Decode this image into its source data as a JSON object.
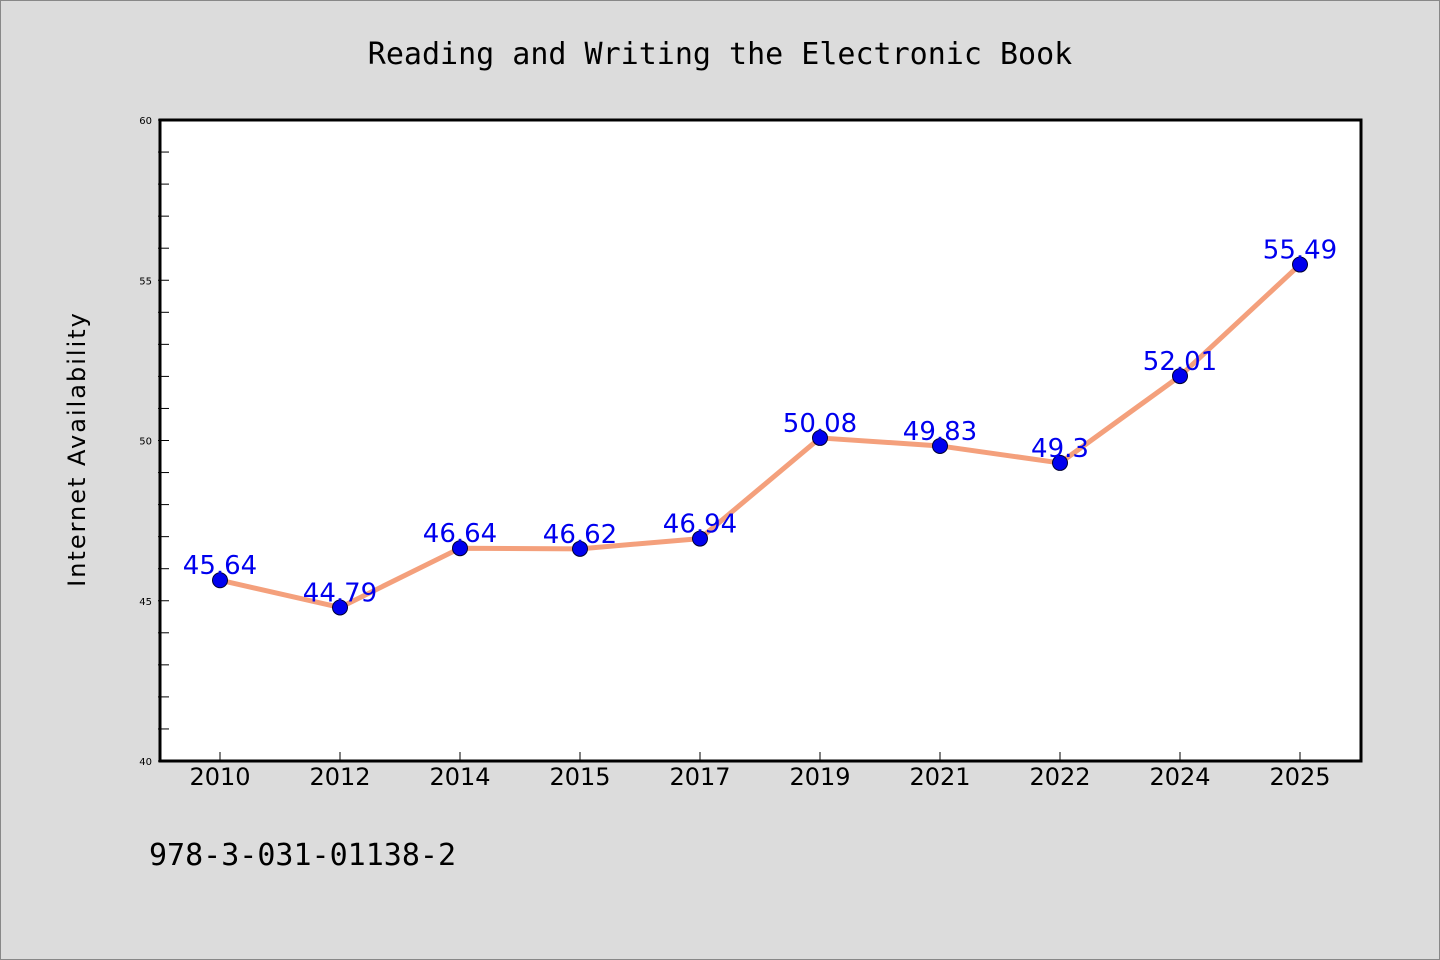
{
  "chart_data": {
    "type": "line",
    "title": "Reading and Writing the Electronic Book",
    "xlabel": "",
    "ylabel": "Internet Availability",
    "categories": [
      "2010",
      "2012",
      "2014",
      "2015",
      "2017",
      "2019",
      "2021",
      "2022",
      "2024",
      "2025"
    ],
    "series": [
      {
        "values": [
          45.64,
          44.79,
          46.64,
          46.62,
          46.94,
          50.08,
          49.83,
          49.3,
          52.01,
          55.49
        ],
        "data_labels": [
          "45.64",
          "44.79",
          "46.64",
          "46.62",
          "46.94",
          "50.08",
          "49.83",
          "49.3",
          "52.01",
          "55.49"
        ],
        "line_color": "#f4a07c",
        "marker_color": "#0000ee",
        "label_color": "#0000ee"
      }
    ],
    "ylim": [
      40,
      60
    ],
    "yticks": [
      "40",
      "45",
      "50",
      "55",
      "60"
    ],
    "grid": false,
    "legend": "none",
    "footer_text": "978-3-031-01138-2",
    "background_color": "#dcdcdc",
    "plot_background_color": "#ffffff"
  }
}
